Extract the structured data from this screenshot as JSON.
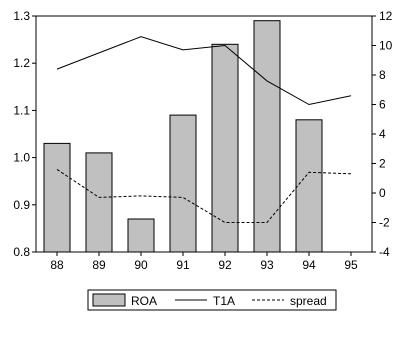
{
  "chart_data": {
    "type": "bar",
    "title": "",
    "xlabel": "",
    "ylabel": "",
    "categories": [
      "88",
      "89",
      "90",
      "91",
      "92",
      "93",
      "94",
      "95"
    ],
    "left_axis": {
      "ylim": [
        0.8,
        1.3
      ],
      "ticks": [
        "0.8",
        "0.9",
        "1.0",
        "1.1",
        "1.2",
        "1.3"
      ]
    },
    "right_axis": {
      "ylim": [
        -4,
        12
      ],
      "ticks": [
        "-4",
        "-2",
        "0",
        "2",
        "4",
        "6",
        "8",
        "10",
        "12"
      ]
    },
    "series": [
      {
        "name": "ROA",
        "kind": "bar",
        "axis": "left",
        "color": "#c0c0c0",
        "values": [
          1.03,
          1.01,
          0.87,
          1.09,
          1.24,
          1.29,
          1.08,
          null
        ]
      },
      {
        "name": "T1A",
        "kind": "line",
        "axis": "right",
        "style": "solid",
        "color": "#000000",
        "values": [
          8.4,
          9.5,
          10.6,
          9.7,
          10.0,
          7.6,
          6.0,
          6.6
        ]
      },
      {
        "name": "spread",
        "kind": "line",
        "axis": "right",
        "style": "dashed",
        "color": "#000000",
        "values": [
          1.6,
          -0.3,
          -0.2,
          -0.3,
          -2.0,
          -2.0,
          1.4,
          1.3
        ]
      }
    ],
    "grid": false,
    "legend": {
      "position": "bottom-center",
      "entries": [
        "ROA",
        "T1A",
        "spread"
      ]
    }
  }
}
